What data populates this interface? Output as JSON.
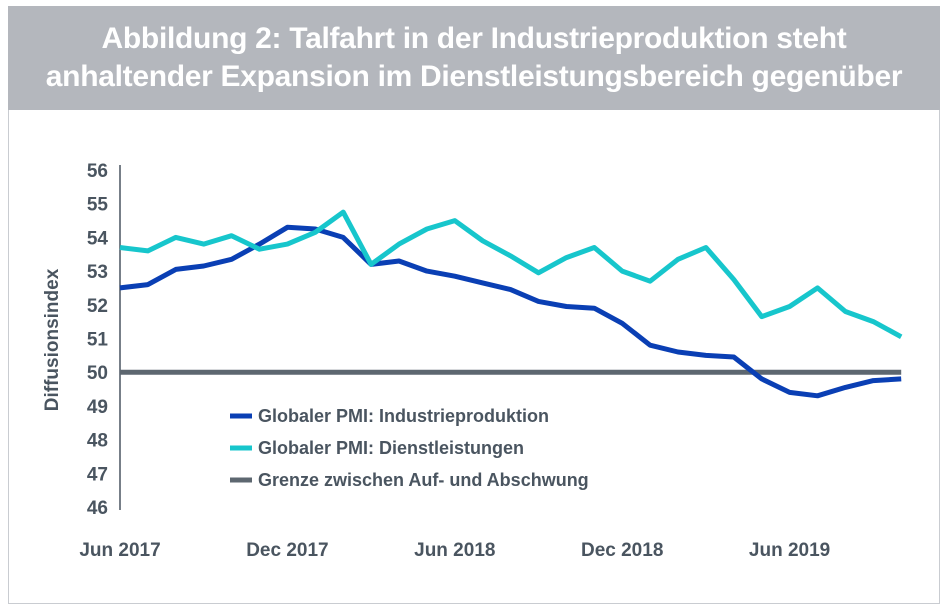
{
  "chart_data": {
    "type": "line",
    "title": "Abbildung 2: Talfahrt in der Industrieproduktion steht anhaltender Expansion im Dienstleistungsbereich gegenüber",
    "title_lines": [
      "Abbildung 2: Talfahrt in der Industrieproduktion steht",
      "anhaltender Expansion im Dienstleistungsbereich gegenüber"
    ],
    "ylabel": "Diffusionsindex",
    "xlabel": "",
    "ylim": [
      46,
      56
    ],
    "yticks": [
      "56",
      "55",
      "54",
      "53",
      "52",
      "51",
      "50",
      "49",
      "48",
      "47",
      "46"
    ],
    "xticks": [
      "Jun 2017",
      "Dec 2017",
      "Jun 2018",
      "Dec 2018",
      "Jun 2019"
    ],
    "x": [
      "2017-06",
      "2017-07",
      "2017-08",
      "2017-09",
      "2017-10",
      "2017-11",
      "2017-12",
      "2018-01",
      "2018-02",
      "2018-03",
      "2018-04",
      "2018-05",
      "2018-06",
      "2018-07",
      "2018-08",
      "2018-09",
      "2018-10",
      "2018-11",
      "2018-12",
      "2019-01",
      "2019-02",
      "2019-03",
      "2019-04",
      "2019-05",
      "2019-06",
      "2019-07",
      "2019-08",
      "2019-09",
      "2019-10"
    ],
    "grid": false,
    "legend_position": "bottom-left inside",
    "series": [
      {
        "name": "Globaler PMI: Industrieproduktion",
        "color": "#0a3fb4",
        "values": [
          52.5,
          52.6,
          53.05,
          53.15,
          53.35,
          53.8,
          54.3,
          54.25,
          54.0,
          53.2,
          53.3,
          53.0,
          52.85,
          52.65,
          52.45,
          52.1,
          51.95,
          51.9,
          51.45,
          50.8,
          50.6,
          50.5,
          50.45,
          49.8,
          49.4,
          49.3,
          49.55,
          49.75,
          49.8
        ]
      },
      {
        "name": "Globaler PMI: Dienstleistungen",
        "color": "#17c6cc",
        "values": [
          53.7,
          53.6,
          54.0,
          53.8,
          54.05,
          53.65,
          53.8,
          54.15,
          54.75,
          53.2,
          53.8,
          54.25,
          54.5,
          53.9,
          53.45,
          52.95,
          53.4,
          53.7,
          53.0,
          52.7,
          53.35,
          53.7,
          52.75,
          51.65,
          51.95,
          52.5,
          51.8,
          51.5,
          51.05
        ]
      },
      {
        "name": "Grenze zwischen Auf- und Abschwung",
        "color": "#5d6770",
        "values": [
          50,
          50,
          50,
          50,
          50,
          50,
          50,
          50,
          50,
          50,
          50,
          50,
          50,
          50,
          50,
          50,
          50,
          50,
          50,
          50,
          50,
          50,
          50,
          50,
          50,
          50,
          50,
          50,
          50
        ]
      }
    ]
  }
}
